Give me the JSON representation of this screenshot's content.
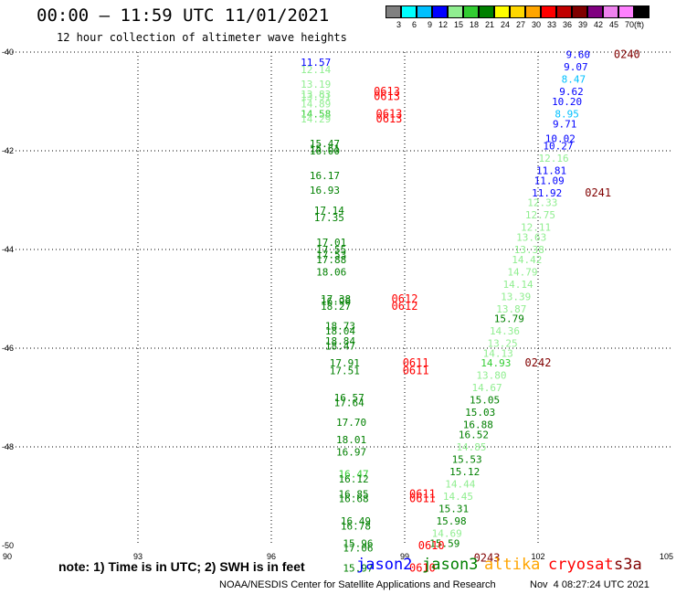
{
  "header": {
    "title": "00:00 — 11:59 UTC 11/01/2021",
    "subtitle": "12 hour collection of altimeter wave heights"
  },
  "colorbar": {
    "colors": [
      "#808080",
      "#00ffff",
      "#00c0ff",
      "#0000ff",
      "#90ee90",
      "#32cd32",
      "#008000",
      "#ffff00",
      "#ffd700",
      "#ffa500",
      "#ff0000",
      "#c00000",
      "#800000",
      "#800080",
      "#ee82ee",
      "#ff80ff",
      "#000000"
    ],
    "labels": [
      "3",
      "6",
      "9",
      "12",
      "15",
      "18",
      "21",
      "24",
      "27",
      "30",
      "33",
      "36",
      "39",
      "42",
      "45",
      "70",
      "(ft)"
    ]
  },
  "footer": {
    "note": "note: 1) Time is in UTC; 2) SWH is in feet",
    "satellites": [
      {
        "name": "jason2",
        "color": "#0000ff"
      },
      {
        "name": "jason3",
        "color": "#008000"
      },
      {
        "name": "altika",
        "color": "#ffa500"
      },
      {
        "name": "cryosat",
        "color": "#ff0000"
      },
      {
        "name": "s3a",
        "color": "#800000"
      }
    ],
    "credit": "NOAA/NESDIS Center for Satellite Applications and Research",
    "timestamp": "Nov  4 08:27:24 UTC 2021"
  },
  "chart_data": {
    "type": "scatter",
    "title": "00:00 — 11:59 UTC 11/01/2021",
    "xlim": [
      90,
      105
    ],
    "ylim": [
      -50,
      -40
    ],
    "x_ticks": [
      "90",
      "93",
      "96",
      "99",
      "102",
      "105"
    ],
    "y_ticks": [
      "-40",
      "-42",
      "-44",
      "-46",
      "-48",
      "-50"
    ],
    "grid": true,
    "units": "ft",
    "points": [
      {
        "x": 97.0,
        "y": -40.2,
        "label": "11.57",
        "color": "#0000ff"
      },
      {
        "x": 97.0,
        "y": -40.35,
        "label": "12.14",
        "color": "#90ee90"
      },
      {
        "x": 97.0,
        "y": -40.65,
        "label": "13.19",
        "color": "#90ee90"
      },
      {
        "x": 97.0,
        "y": -40.85,
        "label": "13.83",
        "color": "#90ee90"
      },
      {
        "x": 97.0,
        "y": -40.9,
        "label": "13.91",
        "color": "#90ee90"
      },
      {
        "x": 97.0,
        "y": -41.05,
        "label": "14.89",
        "color": "#90ee90"
      },
      {
        "x": 97.0,
        "y": -41.25,
        "label": "14.58",
        "color": "#32cd32"
      },
      {
        "x": 97.0,
        "y": -41.35,
        "label": "14.29",
        "color": "#90ee90"
      },
      {
        "x": 97.2,
        "y": -41.85,
        "label": "15.47",
        "color": "#008000"
      },
      {
        "x": 97.2,
        "y": -41.95,
        "label": "15.61",
        "color": "#008000"
      },
      {
        "x": 97.2,
        "y": -42.0,
        "label": "16.00",
        "color": "#008000"
      },
      {
        "x": 97.2,
        "y": -42.5,
        "label": "16.17",
        "color": "#008000"
      },
      {
        "x": 97.2,
        "y": -42.8,
        "label": "16.93",
        "color": "#008000"
      },
      {
        "x": 97.3,
        "y": -43.2,
        "label": "17.14",
        "color": "#008000"
      },
      {
        "x": 97.3,
        "y": -43.35,
        "label": "17.35",
        "color": "#008000"
      },
      {
        "x": 97.35,
        "y": -43.85,
        "label": "17.01",
        "color": "#008000"
      },
      {
        "x": 97.35,
        "y": -44.0,
        "label": "17.55",
        "color": "#008000"
      },
      {
        "x": 97.35,
        "y": -44.1,
        "label": "17.53",
        "color": "#008000"
      },
      {
        "x": 97.35,
        "y": -44.2,
        "label": "17.88",
        "color": "#008000"
      },
      {
        "x": 97.35,
        "y": -44.45,
        "label": "18.06",
        "color": "#008000"
      },
      {
        "x": 97.45,
        "y": -45.0,
        "label": "17.38",
        "color": "#008000"
      },
      {
        "x": 97.45,
        "y": -45.05,
        "label": "16.96",
        "color": "#008000"
      },
      {
        "x": 97.45,
        "y": -45.15,
        "label": "18.27",
        "color": "#008000"
      },
      {
        "x": 97.55,
        "y": -45.55,
        "label": "18.73",
        "color": "#008000"
      },
      {
        "x": 97.55,
        "y": -45.65,
        "label": "18.04",
        "color": "#008000"
      },
      {
        "x": 97.55,
        "y": -45.85,
        "label": "18.84",
        "color": "#008000"
      },
      {
        "x": 97.55,
        "y": -45.95,
        "label": "18.47",
        "color": "#008000"
      },
      {
        "x": 97.65,
        "y": -46.3,
        "label": "17.91",
        "color": "#008000"
      },
      {
        "x": 97.65,
        "y": -46.45,
        "label": "17.51",
        "color": "#008000"
      },
      {
        "x": 97.75,
        "y": -47.0,
        "label": "16.57",
        "color": "#008000"
      },
      {
        "x": 97.75,
        "y": -47.1,
        "label": "17.64",
        "color": "#008000"
      },
      {
        "x": 97.8,
        "y": -47.5,
        "label": "17.70",
        "color": "#008000"
      },
      {
        "x": 97.8,
        "y": -47.85,
        "label": "18.01",
        "color": "#008000"
      },
      {
        "x": 97.8,
        "y": -48.1,
        "label": "16.97",
        "color": "#008000"
      },
      {
        "x": 97.85,
        "y": -48.55,
        "label": "16.47",
        "color": "#32cd32"
      },
      {
        "x": 97.85,
        "y": -48.65,
        "label": "16.12",
        "color": "#008000"
      },
      {
        "x": 97.85,
        "y": -48.95,
        "label": "16.85",
        "color": "#008000"
      },
      {
        "x": 97.85,
        "y": -49.05,
        "label": "16.68",
        "color": "#008000"
      },
      {
        "x": 97.9,
        "y": -49.5,
        "label": "16.49",
        "color": "#008000"
      },
      {
        "x": 97.9,
        "y": -49.6,
        "label": "16.78",
        "color": "#008000"
      },
      {
        "x": 97.95,
        "y": -49.95,
        "label": "15.96",
        "color": "#008000"
      },
      {
        "x": 97.95,
        "y": -50.05,
        "label": "17.06",
        "color": "#008000"
      },
      {
        "x": 97.95,
        "y": -50.45,
        "label": "15.97",
        "color": "#008000"
      },
      {
        "x": 102.9,
        "y": -40.05,
        "label": "9.60",
        "color": "#0000ff"
      },
      {
        "x": 102.85,
        "y": -40.3,
        "label": "9.07",
        "color": "#0000ff"
      },
      {
        "x": 102.8,
        "y": -40.55,
        "label": "8.47",
        "color": "#00c0ff"
      },
      {
        "x": 102.75,
        "y": -40.8,
        "label": "9.62",
        "color": "#0000ff"
      },
      {
        "x": 102.65,
        "y": -41.0,
        "label": "10.20",
        "color": "#0000ff"
      },
      {
        "x": 102.65,
        "y": -41.25,
        "label": "8.95",
        "color": "#00c0ff"
      },
      {
        "x": 102.6,
        "y": -41.45,
        "label": "9.71",
        "color": "#0000ff"
      },
      {
        "x": 102.5,
        "y": -41.75,
        "label": "10.02",
        "color": "#0000ff"
      },
      {
        "x": 102.45,
        "y": -41.9,
        "label": "10.27",
        "color": "#0000ff"
      },
      {
        "x": 102.35,
        "y": -42.15,
        "label": "12.16",
        "color": "#90ee90"
      },
      {
        "x": 102.3,
        "y": -42.4,
        "label": "11.81",
        "color": "#0000ff"
      },
      {
        "x": 102.25,
        "y": -42.6,
        "label": "11.09",
        "color": "#0000ff"
      },
      {
        "x": 102.2,
        "y": -42.85,
        "label": "11.92",
        "color": "#0000ff"
      },
      {
        "x": 102.1,
        "y": -43.05,
        "label": "12.33",
        "color": "#90ee90"
      },
      {
        "x": 102.05,
        "y": -43.3,
        "label": "12.75",
        "color": "#90ee90"
      },
      {
        "x": 101.95,
        "y": -43.55,
        "label": "12.11",
        "color": "#90ee90"
      },
      {
        "x": 101.85,
        "y": -43.75,
        "label": "13.63",
        "color": "#90ee90"
      },
      {
        "x": 101.8,
        "y": -44.0,
        "label": "13.38",
        "color": "#90ee90"
      },
      {
        "x": 101.75,
        "y": -44.2,
        "label": "14.42",
        "color": "#90ee90"
      },
      {
        "x": 101.65,
        "y": -44.45,
        "label": "14.79",
        "color": "#90ee90"
      },
      {
        "x": 101.55,
        "y": -44.7,
        "label": "14.14",
        "color": "#90ee90"
      },
      {
        "x": 101.5,
        "y": -44.95,
        "label": "13.39",
        "color": "#90ee90"
      },
      {
        "x": 101.4,
        "y": -45.2,
        "label": "13.87",
        "color": "#90ee90"
      },
      {
        "x": 101.35,
        "y": -45.4,
        "label": "15.79",
        "color": "#008000"
      },
      {
        "x": 101.25,
        "y": -45.65,
        "label": "14.36",
        "color": "#90ee90"
      },
      {
        "x": 101.2,
        "y": -45.9,
        "label": "13.25",
        "color": "#90ee90"
      },
      {
        "x": 101.1,
        "y": -46.1,
        "label": "14.13",
        "color": "#90ee90"
      },
      {
        "x": 101.05,
        "y": -46.3,
        "label": "14.93",
        "color": "#32cd32"
      },
      {
        "x": 100.95,
        "y": -46.55,
        "label": "13.80",
        "color": "#90ee90"
      },
      {
        "x": 100.85,
        "y": -46.8,
        "label": "14.67",
        "color": "#90ee90"
      },
      {
        "x": 100.8,
        "y": -47.05,
        "label": "15.05",
        "color": "#008000"
      },
      {
        "x": 100.7,
        "y": -47.3,
        "label": "15.03",
        "color": "#008000"
      },
      {
        "x": 100.65,
        "y": -47.55,
        "label": "16.88",
        "color": "#008000"
      },
      {
        "x": 100.55,
        "y": -47.75,
        "label": "16.52",
        "color": "#008000"
      },
      {
        "x": 100.5,
        "y": -48.0,
        "label": "14.85",
        "color": "#90ee90"
      },
      {
        "x": 100.4,
        "y": -48.25,
        "label": "15.53",
        "color": "#008000"
      },
      {
        "x": 100.35,
        "y": -48.5,
        "label": "15.12",
        "color": "#008000"
      },
      {
        "x": 100.25,
        "y": -48.75,
        "label": "14.44",
        "color": "#90ee90"
      },
      {
        "x": 100.2,
        "y": -49.0,
        "label": "14.45",
        "color": "#90ee90"
      },
      {
        "x": 100.1,
        "y": -49.25,
        "label": "15.31",
        "color": "#008000"
      },
      {
        "x": 100.05,
        "y": -49.5,
        "label": "15.98",
        "color": "#008000"
      },
      {
        "x": 99.95,
        "y": -49.75,
        "label": "14.69",
        "color": "#90ee90"
      },
      {
        "x": 99.9,
        "y": -49.95,
        "label": "15.59",
        "color": "#008000"
      }
    ],
    "time_labels": [
      {
        "x": 98.6,
        "y": -40.8,
        "label": "0613",
        "color": "#ff0000"
      },
      {
        "x": 98.6,
        "y": -40.9,
        "label": "0613",
        "color": "#ff0000"
      },
      {
        "x": 98.65,
        "y": -41.25,
        "label": "0613",
        "color": "#ff0000"
      },
      {
        "x": 98.65,
        "y": -41.35,
        "label": "0613",
        "color": "#ff0000"
      },
      {
        "x": 99.0,
        "y": -45.0,
        "label": "0612",
        "color": "#ff0000"
      },
      {
        "x": 99.0,
        "y": -45.15,
        "label": "0612",
        "color": "#ff0000"
      },
      {
        "x": 99.25,
        "y": -46.3,
        "label": "0611",
        "color": "#ff0000"
      },
      {
        "x": 99.25,
        "y": -46.45,
        "label": "0611",
        "color": "#ff0000"
      },
      {
        "x": 99.4,
        "y": -48.95,
        "label": "0611",
        "color": "#ff0000"
      },
      {
        "x": 99.4,
        "y": -49.05,
        "label": "0611",
        "color": "#ff0000"
      },
      {
        "x": 99.6,
        "y": -50.0,
        "label": "0610",
        "color": "#ff0000"
      },
      {
        "x": 99.4,
        "y": -50.45,
        "label": "0610",
        "color": "#ff0000"
      },
      {
        "x": 104.0,
        "y": -40.05,
        "label": "0240",
        "color": "#800000"
      },
      {
        "x": 103.35,
        "y": -42.85,
        "label": "0241",
        "color": "#800000"
      },
      {
        "x": 102.0,
        "y": -46.3,
        "label": "0242",
        "color": "#800000"
      },
      {
        "x": 100.85,
        "y": -50.25,
        "label": "0243",
        "color": "#800000"
      }
    ]
  }
}
